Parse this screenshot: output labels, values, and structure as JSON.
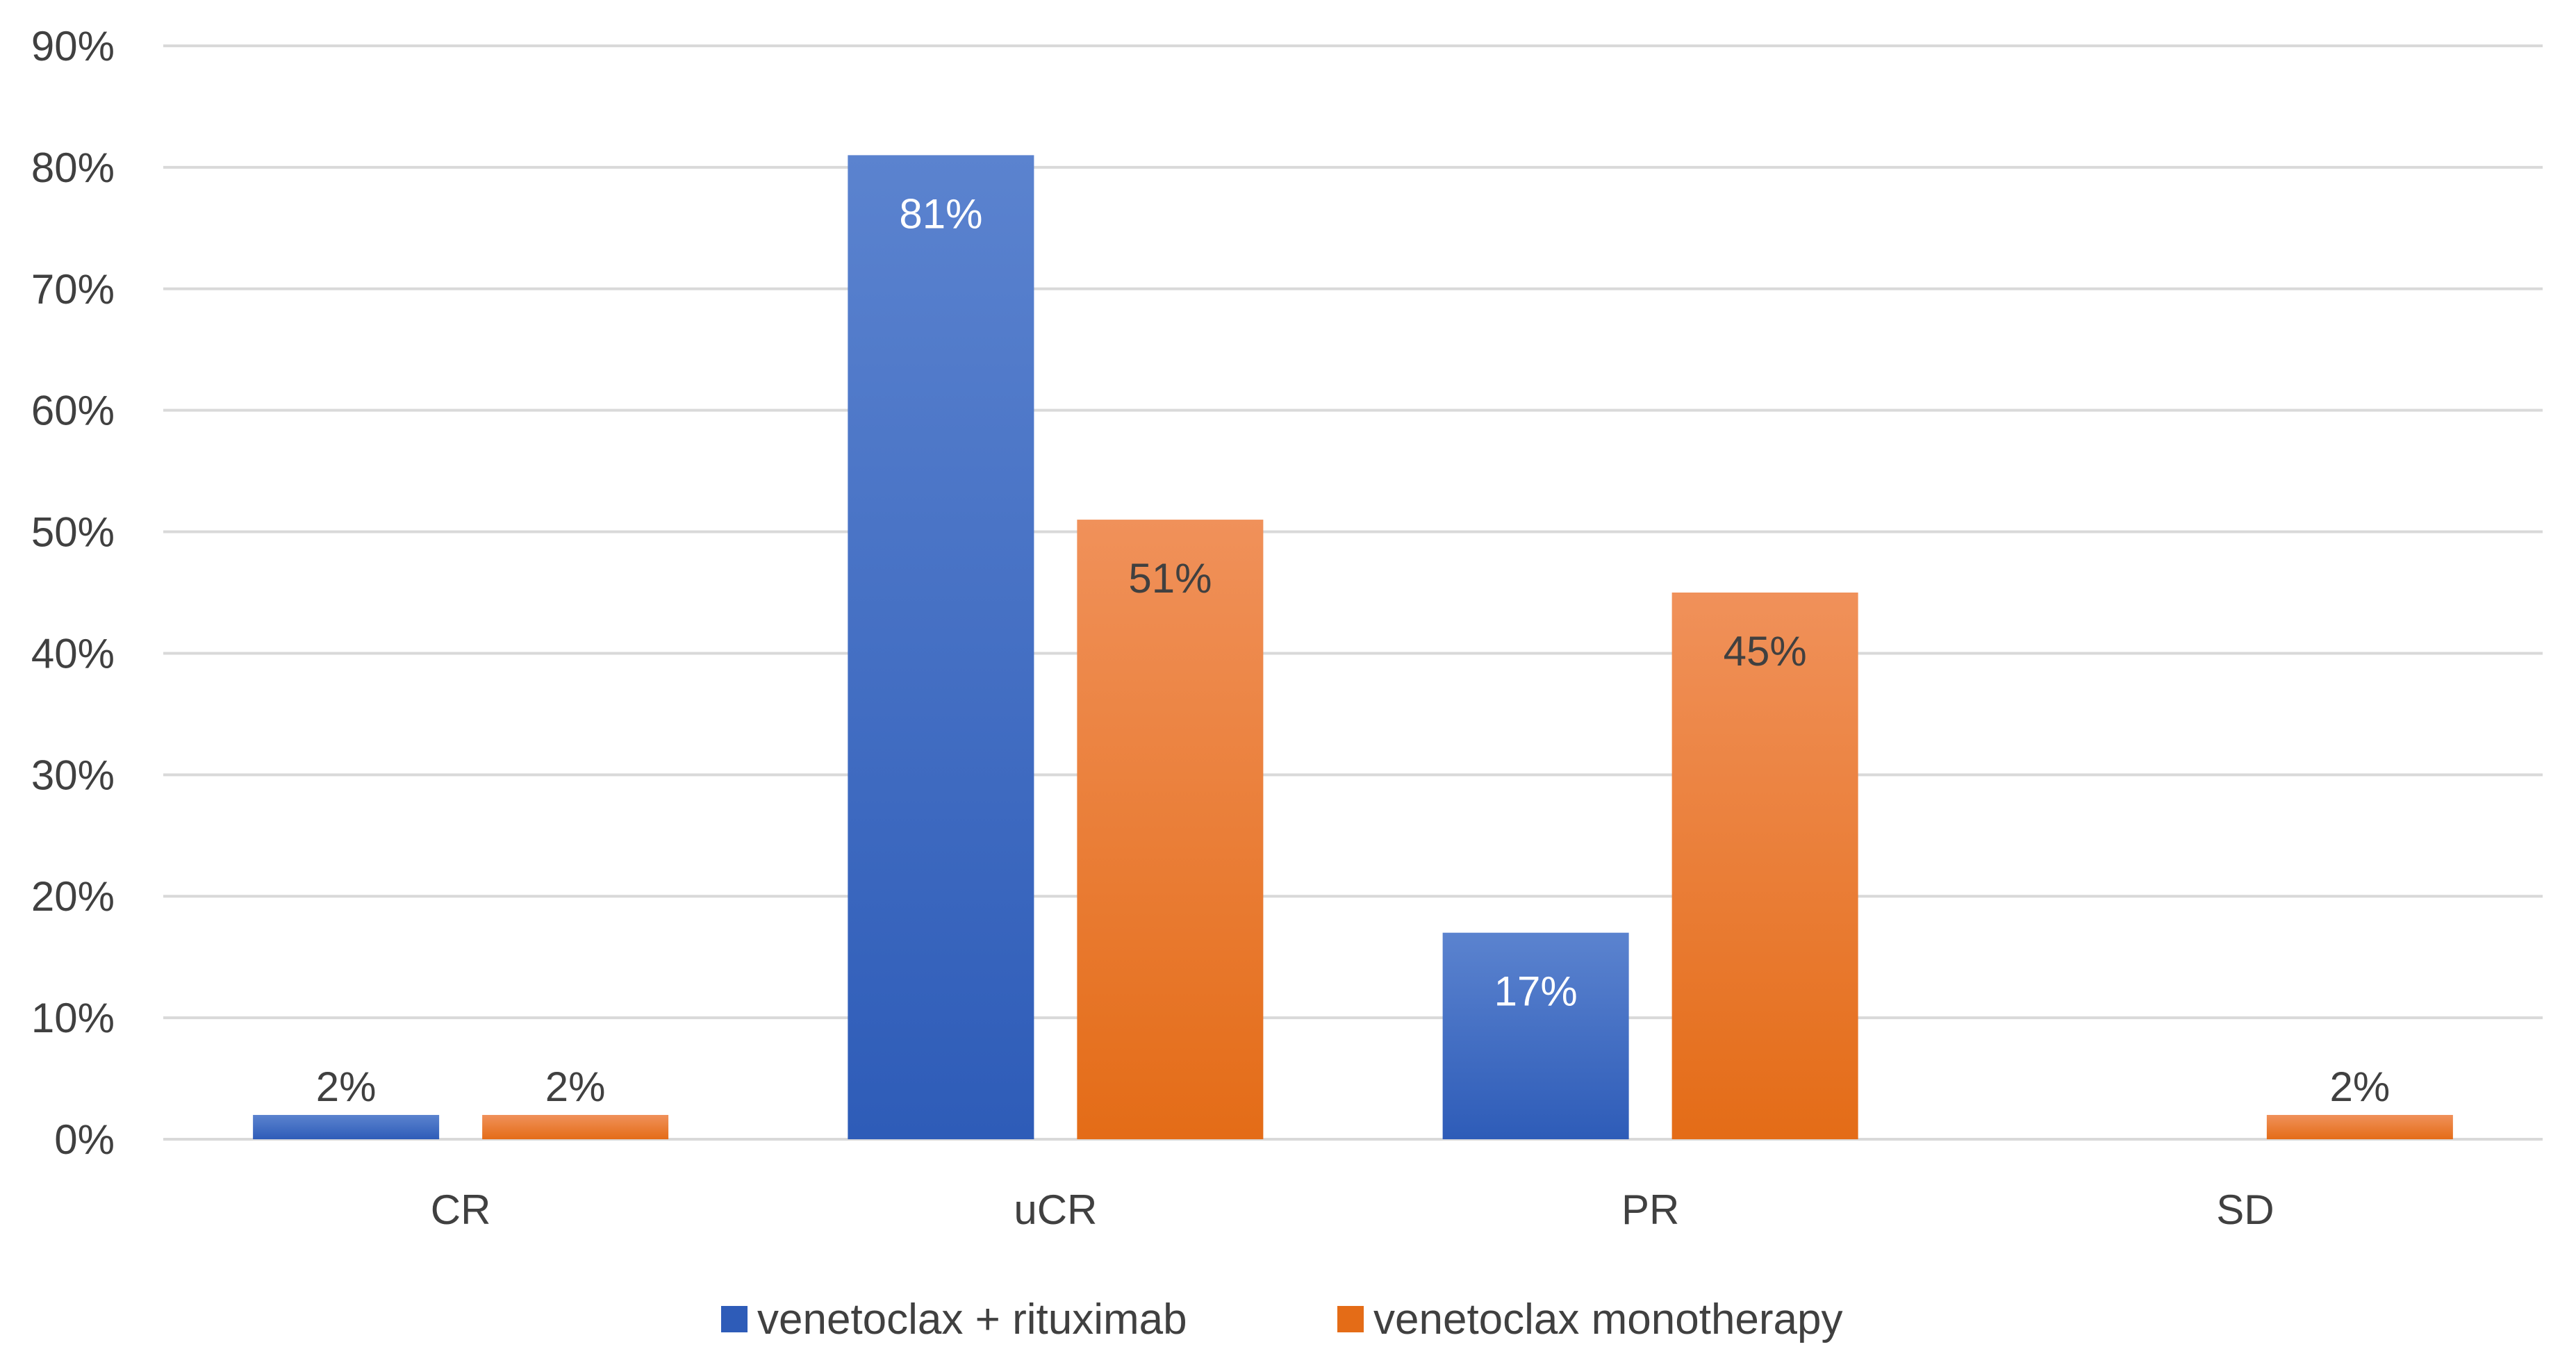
{
  "chart_data": {
    "type": "bar",
    "categories": [
      "CR",
      "uCR",
      "PR",
      "SD"
    ],
    "series": [
      {
        "name": "venetoclax + rituximab",
        "values": [
          2,
          81,
          17,
          0
        ],
        "labels": [
          "2%",
          "81%",
          "17%",
          ""
        ]
      },
      {
        "name": "venetoclax monotherapy",
        "values": [
          2,
          51,
          45,
          2
        ],
        "labels": [
          "2%",
          "51%",
          "45%",
          "2%"
        ]
      }
    ],
    "title": "",
    "xlabel": "",
    "ylabel": "",
    "ylim": [
      0,
      90
    ],
    "yticks": [
      "0%",
      "10%",
      "20%",
      "30%",
      "40%",
      "50%",
      "60%",
      "70%",
      "80%",
      "90%"
    ],
    "grid": true,
    "legend_position": "bottom",
    "colors": {
      "series1_top": "#5b83cf",
      "series1_bottom": "#2e5cb8",
      "series2_top": "#f0915a",
      "series2_bottom": "#e46c17",
      "grid": "#d9d9d9",
      "text": "#404040",
      "label_inside": "#ffffff"
    }
  }
}
